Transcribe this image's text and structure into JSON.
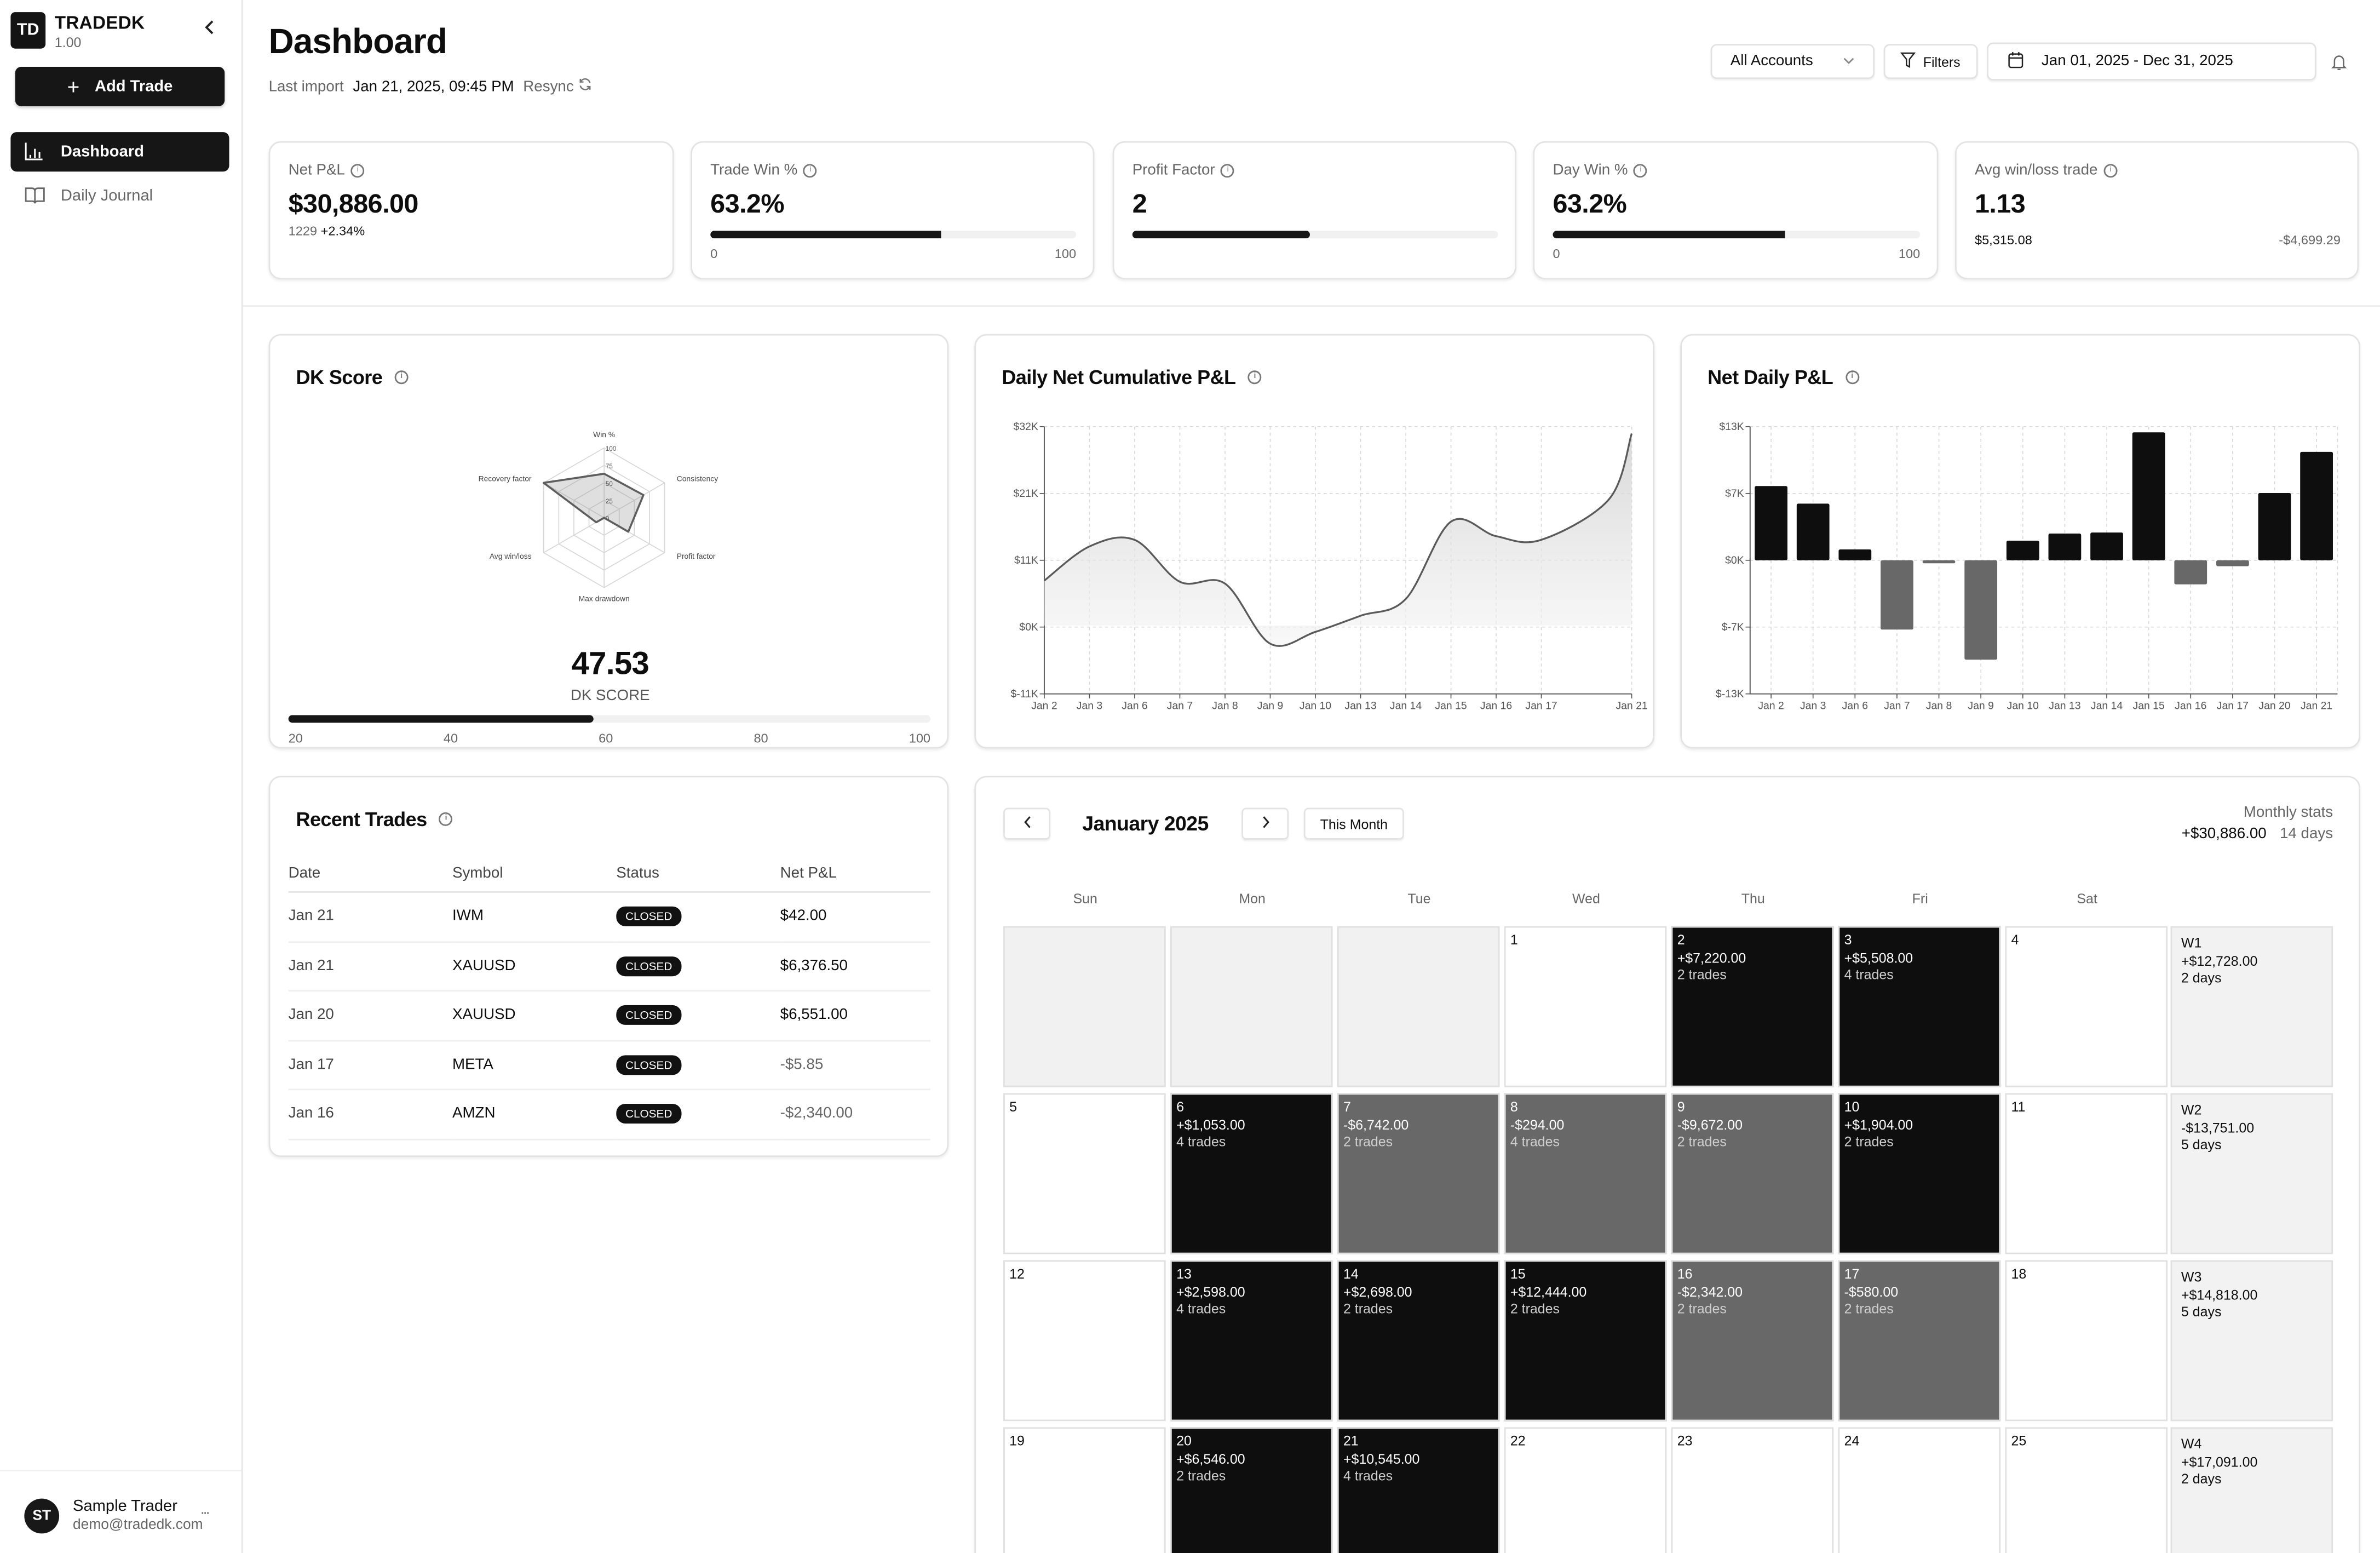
{
  "app": {
    "brand": "TRADEDK",
    "logo_initials": "TD",
    "version": "1.00"
  },
  "sidebar": {
    "add_trade_label": "Add Trade",
    "items": [
      {
        "label": "Dashboard",
        "icon": "bar-chart-icon",
        "active": true
      },
      {
        "label": "Daily Journal",
        "icon": "book-open-icon",
        "active": false
      }
    ],
    "user": {
      "initials": "ST",
      "name": "Sample Trader",
      "email": "demo@tradedk.com",
      "more": "..."
    }
  },
  "header": {
    "title": "Dashboard",
    "last_import_label": "Last import",
    "last_import_value": "Jan 21, 2025, 09:45 PM",
    "resync_label": "Resync",
    "accounts_select": "All Accounts",
    "filters_label": "Filters",
    "date_range": "Jan 01, 2025 - Dec 31, 2025"
  },
  "kpis": [
    {
      "label": "Net P&L",
      "value": "$30,886.00",
      "sub_count": "1229",
      "sub_change": "+2.34%"
    },
    {
      "label": "Trade Win %",
      "value": "63.2%",
      "bar_pct": 63.2,
      "min": "0",
      "max": "100"
    },
    {
      "label": "Profit Factor",
      "value": "2",
      "bar_pct": 48.5
    },
    {
      "label": "Day Win %",
      "value": "63.2%",
      "bar_pct": 63.2,
      "min": "0",
      "max": "100"
    },
    {
      "label": "Avg win/loss trade",
      "value": "1.13",
      "avg_win": "$5,315.08",
      "avg_loss": "-$4,699.29"
    }
  ],
  "dk_score": {
    "title": "DK Score",
    "value": "47.53",
    "label": "DK SCORE",
    "bar_pct": 47.5,
    "scale": [
      "20",
      "40",
      "60",
      "80",
      "100"
    ]
  },
  "cumulative": {
    "title": "Daily Net Cumulative P&L"
  },
  "daily": {
    "title": "Net Daily P&L"
  },
  "recent_trades": {
    "title": "Recent Trades",
    "columns": [
      "Date",
      "Symbol",
      "Status",
      "Net P&L"
    ],
    "rows": [
      {
        "date": "Jan 21",
        "symbol": "IWM",
        "status": "CLOSED",
        "pnl": "$42.00",
        "neg": false
      },
      {
        "date": "Jan 21",
        "symbol": "XAUUSD",
        "status": "CLOSED",
        "pnl": "$6,376.50",
        "neg": false
      },
      {
        "date": "Jan 20",
        "symbol": "XAUUSD",
        "status": "CLOSED",
        "pnl": "$6,551.00",
        "neg": false
      },
      {
        "date": "Jan 17",
        "symbol": "META",
        "status": "CLOSED",
        "pnl": "-$5.85",
        "neg": true
      },
      {
        "date": "Jan 16",
        "symbol": "AMZN",
        "status": "CLOSED",
        "pnl": "-$2,340.00",
        "neg": true
      }
    ]
  },
  "calendar": {
    "month_label": "January 2025",
    "this_month_label": "This Month",
    "monthly_stats_label": "Monthly stats",
    "monthly_pnl": "+$30,886.00",
    "monthly_days": "14 days",
    "weekdays": [
      "Sun",
      "Mon",
      "Tue",
      "Wed",
      "Thu",
      "Fri",
      "Sat"
    ],
    "weeks": [
      {
        "days": [
          {
            "day": "",
            "type": "empty"
          },
          {
            "day": "",
            "type": "empty"
          },
          {
            "day": "",
            "type": "empty"
          },
          {
            "day": "1",
            "type": "blank"
          },
          {
            "day": "2",
            "type": "win",
            "pnl": "+$7,220.00",
            "trades": "2 trades"
          },
          {
            "day": "3",
            "type": "win",
            "pnl": "+$5,508.00",
            "trades": "4 trades"
          },
          {
            "day": "4",
            "type": "blank"
          }
        ],
        "summary": {
          "label": "W1",
          "pnl": "+$12,728.00",
          "days": "2 days"
        }
      },
      {
        "days": [
          {
            "day": "5",
            "type": "blank"
          },
          {
            "day": "6",
            "type": "win",
            "pnl": "+$1,053.00",
            "trades": "4 trades"
          },
          {
            "day": "7",
            "type": "loss",
            "pnl": "-$6,742.00",
            "trades": "2 trades"
          },
          {
            "day": "8",
            "type": "loss",
            "pnl": "-$294.00",
            "trades": "4 trades"
          },
          {
            "day": "9",
            "type": "loss",
            "pnl": "-$9,672.00",
            "trades": "2 trades"
          },
          {
            "day": "10",
            "type": "win",
            "pnl": "+$1,904.00",
            "trades": "2 trades"
          },
          {
            "day": "11",
            "type": "blank"
          }
        ],
        "summary": {
          "label": "W2",
          "pnl": "-$13,751.00",
          "days": "5 days"
        }
      },
      {
        "days": [
          {
            "day": "12",
            "type": "blank"
          },
          {
            "day": "13",
            "type": "win",
            "pnl": "+$2,598.00",
            "trades": "4 trades"
          },
          {
            "day": "14",
            "type": "win",
            "pnl": "+$2,698.00",
            "trades": "2 trades"
          },
          {
            "day": "15",
            "type": "win",
            "pnl": "+$12,444.00",
            "trades": "2 trades"
          },
          {
            "day": "16",
            "type": "loss",
            "pnl": "-$2,342.00",
            "trades": "2 trades"
          },
          {
            "day": "17",
            "type": "loss",
            "pnl": "-$580.00",
            "trades": "2 trades"
          },
          {
            "day": "18",
            "type": "blank"
          }
        ],
        "summary": {
          "label": "W3",
          "pnl": "+$14,818.00",
          "days": "5 days"
        }
      },
      {
        "days": [
          {
            "day": "19",
            "type": "blank"
          },
          {
            "day": "20",
            "type": "win",
            "pnl": "+$6,546.00",
            "trades": "2 trades"
          },
          {
            "day": "21",
            "type": "win",
            "pnl": "+$10,545.00",
            "trades": "4 trades"
          },
          {
            "day": "22",
            "type": "blank"
          },
          {
            "day": "23",
            "type": "blank"
          },
          {
            "day": "24",
            "type": "blank"
          },
          {
            "day": "25",
            "type": "blank"
          }
        ],
        "summary": {
          "label": "W4",
          "pnl": "+$17,091.00",
          "days": "2 days"
        }
      }
    ]
  },
  "colors": {
    "primary": "#161616",
    "loss": "#686868",
    "muted": "#666666",
    "track": "#f1f1f1",
    "border": "#e3e3e3"
  },
  "chart_data": [
    {
      "type": "radar",
      "title": "DK Score",
      "axes": [
        "Win %",
        "Consistency",
        "Profit factor",
        "Max drawdown",
        "Avg win/loss",
        "Recovery factor"
      ],
      "values": [
        63,
        65,
        40,
        0,
        13,
        100
      ],
      "rticks": [
        "0",
        "25",
        "50",
        "75",
        "100"
      ],
      "range": [
        0,
        100
      ]
    },
    {
      "type": "area",
      "title": "Daily Net Cumulative P&L",
      "x": [
        "Jan 2",
        "Jan 3",
        "Jan 6",
        "Jan 7",
        "Jan 8",
        "Jan 9",
        "Jan 10",
        "Jan 13",
        "Jan 14",
        "Jan 15",
        "Jan 16",
        "Jan 17",
        "Jan 20",
        "Jan 21"
      ],
      "x_tick_labels": [
        "Jan 2",
        "Jan 3",
        "Jan 6",
        "Jan 7",
        "Jan 8",
        "Jan 9",
        "Jan 10",
        "Jan 13",
        "Jan 14",
        "Jan 15",
        "Jan 16",
        "Jan 17",
        "Jan 21"
      ],
      "values": [
        7220,
        12728,
        13781,
        7039,
        6745,
        -2927,
        -1023,
        1575,
        4273,
        16717,
        14375,
        13795,
        20341,
        30886
      ],
      "yticks": [
        "$32K",
        "$21K",
        "$11K",
        "$0K",
        "$-11K"
      ],
      "ylim": [
        -11000,
        32000
      ],
      "grid": true
    },
    {
      "type": "bar",
      "title": "Net Daily P&L",
      "categories": [
        "Jan 2",
        "Jan 3",
        "Jan 6",
        "Jan 7",
        "Jan 8",
        "Jan 9",
        "Jan 10",
        "Jan 13",
        "Jan 14",
        "Jan 15",
        "Jan 16",
        "Jan 17",
        "Jan 20",
        "Jan 21"
      ],
      "values": [
        7220,
        5508,
        1053,
        -6742,
        -294,
        -9672,
        1904,
        2598,
        2698,
        12444,
        -2342,
        -580,
        6546,
        10545
      ],
      "yticks": [
        "$13K",
        "$7K",
        "$0K",
        "$-7K",
        "$-13K"
      ],
      "ylim": [
        -13000,
        13000
      ],
      "grid": true
    }
  ]
}
